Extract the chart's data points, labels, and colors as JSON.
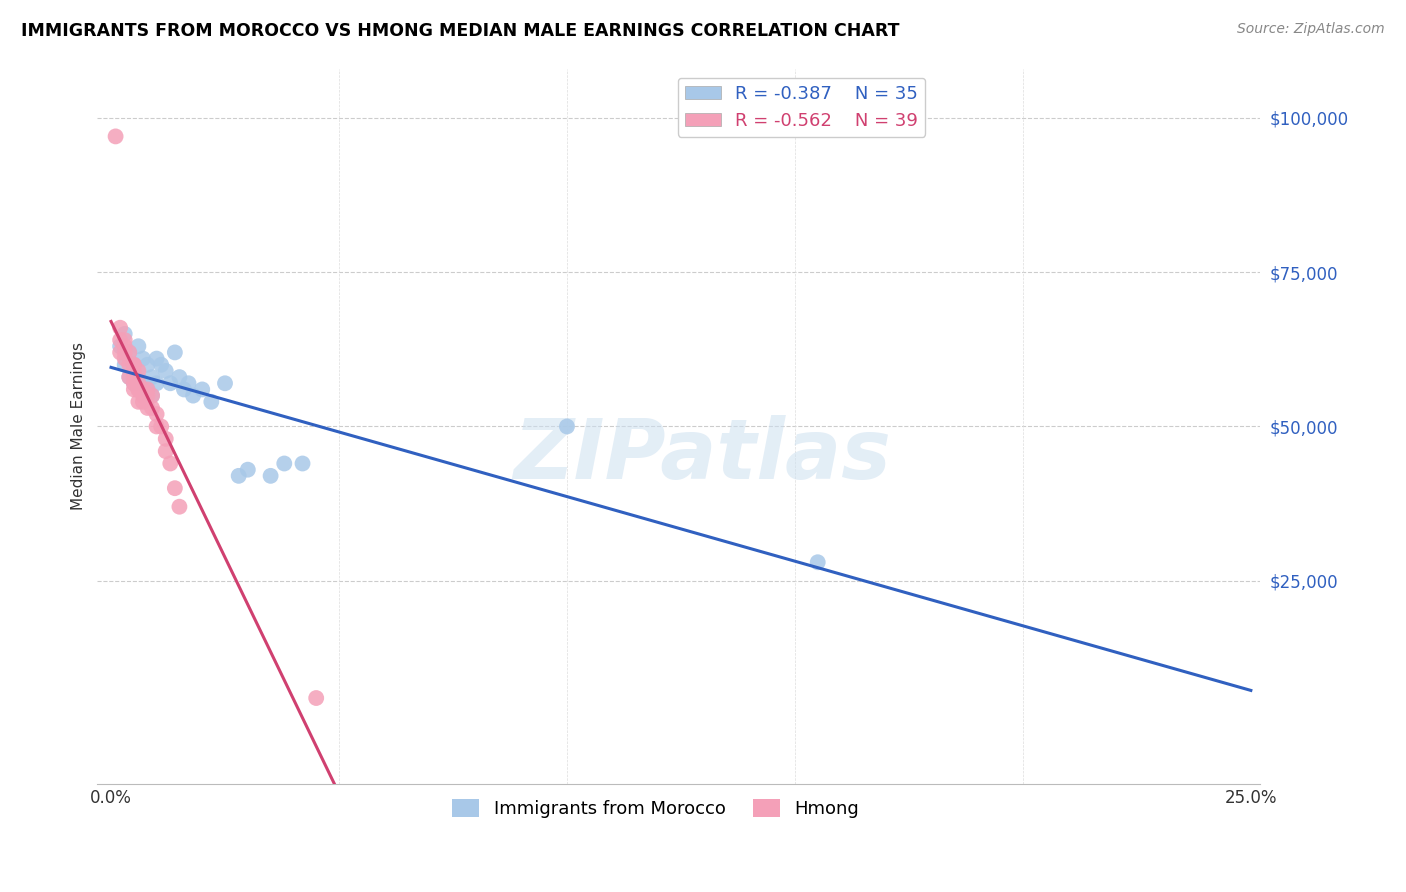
{
  "title": "IMMIGRANTS FROM MOROCCO VS HMONG MEDIAN MALE EARNINGS CORRELATION CHART",
  "source": "Source: ZipAtlas.com",
  "ylabel": "Median Male Earnings",
  "watermark": "ZIPatlas",
  "legend_blue_r": "R = -0.387",
  "legend_blue_n": "N = 35",
  "legend_pink_r": "R = -0.562",
  "legend_pink_n": "N = 39",
  "blue_color": "#A8C8E8",
  "pink_color": "#F4A0B8",
  "blue_line_color": "#3060C0",
  "pink_line_color": "#D04070",
  "morocco_x": [
    0.002,
    0.003,
    0.003,
    0.004,
    0.004,
    0.005,
    0.005,
    0.006,
    0.006,
    0.007,
    0.007,
    0.008,
    0.008,
    0.009,
    0.009,
    0.01,
    0.01,
    0.011,
    0.012,
    0.013,
    0.014,
    0.015,
    0.016,
    0.017,
    0.018,
    0.02,
    0.022,
    0.025,
    0.028,
    0.03,
    0.035,
    0.038,
    0.042,
    0.1,
    0.155
  ],
  "morocco_y": [
    63000,
    60000,
    65000,
    58000,
    62000,
    57000,
    60000,
    58000,
    63000,
    57000,
    61000,
    56000,
    60000,
    58000,
    55000,
    57000,
    61000,
    60000,
    59000,
    57000,
    62000,
    58000,
    56000,
    57000,
    55000,
    56000,
    54000,
    57000,
    42000,
    43000,
    42000,
    44000,
    44000,
    50000,
    28000
  ],
  "hmong_x": [
    0.001,
    0.002,
    0.002,
    0.002,
    0.003,
    0.003,
    0.003,
    0.003,
    0.004,
    0.004,
    0.004,
    0.005,
    0.005,
    0.005,
    0.005,
    0.005,
    0.005,
    0.006,
    0.006,
    0.006,
    0.006,
    0.006,
    0.007,
    0.007,
    0.007,
    0.008,
    0.008,
    0.008,
    0.009,
    0.009,
    0.01,
    0.01,
    0.011,
    0.012,
    0.012,
    0.013,
    0.014,
    0.015,
    0.045
  ],
  "hmong_y": [
    97000,
    64000,
    62000,
    66000,
    63000,
    61000,
    64000,
    62000,
    60000,
    62000,
    58000,
    59000,
    57000,
    60000,
    56000,
    58000,
    60000,
    57000,
    56000,
    54000,
    56000,
    59000,
    56000,
    54000,
    55000,
    55000,
    53000,
    56000,
    53000,
    55000,
    52000,
    50000,
    50000,
    48000,
    46000,
    44000,
    40000,
    37000,
    6000
  ],
  "xlim": [
    -0.003,
    0.252
  ],
  "ylim": [
    -8000,
    108000
  ],
  "xgrid": [
    0.0,
    0.05,
    0.1,
    0.15,
    0.2,
    0.25
  ],
  "ygrid": [
    25000,
    50000,
    75000,
    100000
  ]
}
